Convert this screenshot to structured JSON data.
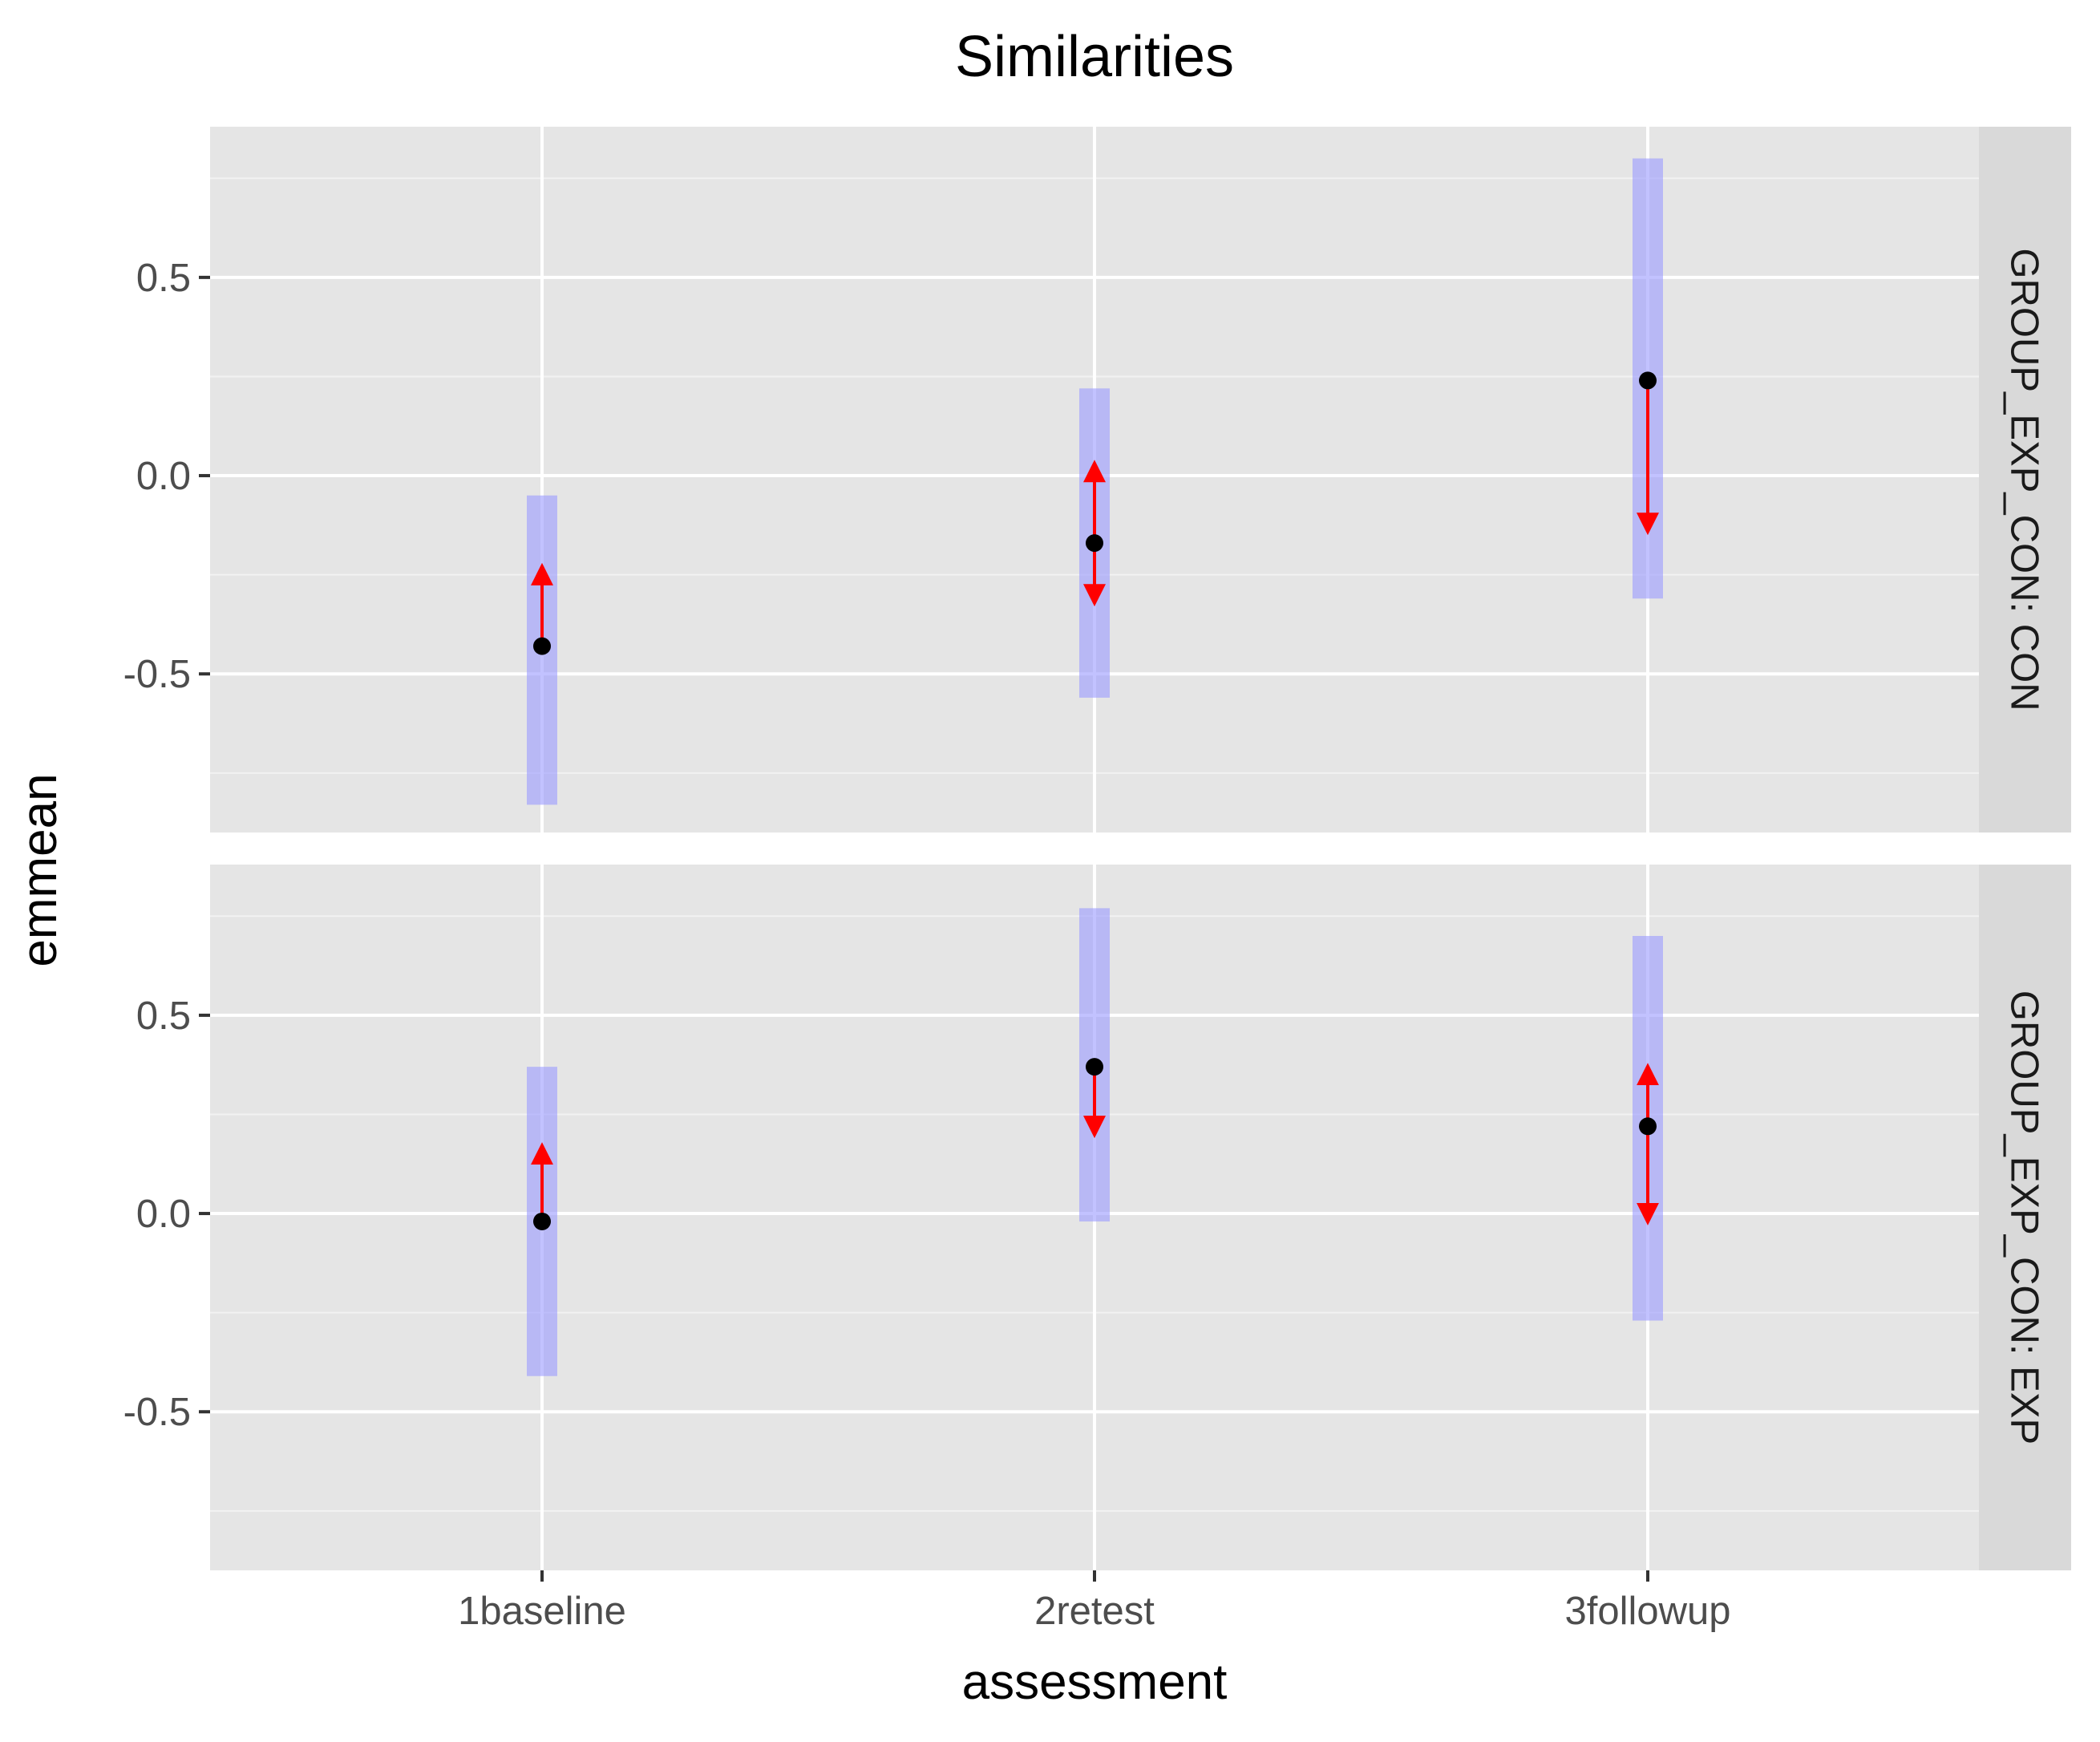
{
  "chart_data": {
    "type": "errorbar-faceted",
    "title": "Similarities",
    "xlabel": "assessment",
    "ylabel": "emmean",
    "categories": [
      "1baseline",
      "2retest",
      "3followup"
    ],
    "ylim": [
      -0.9,
      0.88
    ],
    "y_ticks": [
      -0.5,
      0.0,
      0.5
    ],
    "y_tick_labels": [
      "-0.5",
      "0.0",
      "0.5"
    ],
    "grid": true,
    "ci_color": "#9999ff",
    "point_color": "#000000",
    "arrow_color": "#ff0000",
    "panel_background": "#e5e5e5",
    "strip_background": "#d9d9d9",
    "facets": [
      {
        "strip_label": "GROUP_EXP_CON: CON",
        "points": [
          {
            "category": "1baseline",
            "emmean": -0.43,
            "lower_CL": -0.83,
            "upper_CL": -0.05,
            "arrow_low": -0.43,
            "arrow_high": -0.22
          },
          {
            "category": "2retest",
            "emmean": -0.17,
            "lower_CL": -0.56,
            "upper_CL": 0.22,
            "arrow_low": -0.33,
            "arrow_high": 0.04
          },
          {
            "category": "3followup",
            "emmean": 0.24,
            "lower_CL": -0.31,
            "upper_CL": 0.8,
            "arrow_low": -0.15,
            "arrow_high": 0.24
          }
        ]
      },
      {
        "strip_label": "GROUP_EXP_CON: EXP",
        "points": [
          {
            "category": "1baseline",
            "emmean": -0.02,
            "lower_CL": -0.41,
            "upper_CL": 0.37,
            "arrow_low": -0.02,
            "arrow_high": 0.18
          },
          {
            "category": "2retest",
            "emmean": 0.37,
            "lower_CL": -0.02,
            "upper_CL": 0.77,
            "arrow_low": 0.19,
            "arrow_high": 0.37
          },
          {
            "category": "3followup",
            "emmean": 0.22,
            "lower_CL": -0.27,
            "upper_CL": 0.7,
            "arrow_low": -0.03,
            "arrow_high": 0.38
          }
        ]
      }
    ]
  }
}
